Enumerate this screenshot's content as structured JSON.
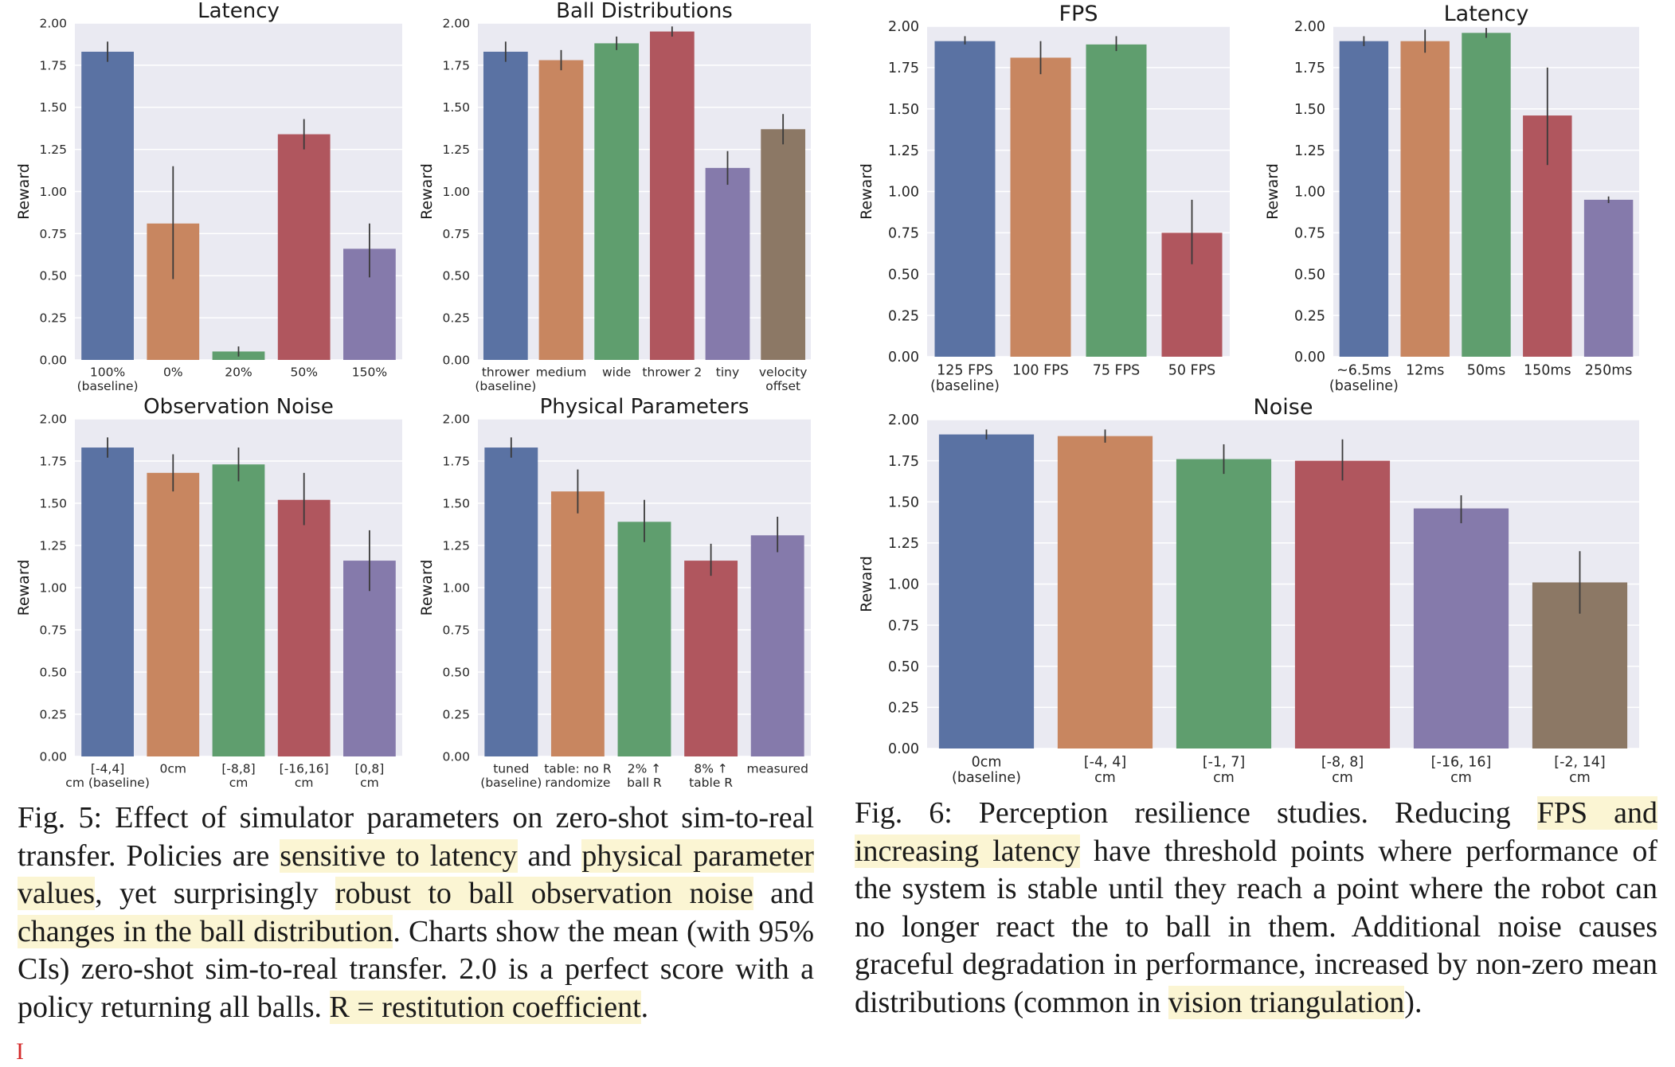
{
  "chart_data": [
    {
      "type": "bar",
      "title": "Latency",
      "ylabel": "Reward",
      "ylim": [
        0,
        2
      ],
      "yticks": [
        "0.00",
        "0.25",
        "0.50",
        "0.75",
        "1.00",
        "1.25",
        "1.50",
        "1.75",
        "2.00"
      ],
      "categories": [
        [
          "100%",
          "(baseline)"
        ],
        [
          "0%"
        ],
        [
          "20%"
        ],
        [
          "50%"
        ],
        [
          "150%"
        ]
      ],
      "values": [
        1.83,
        0.81,
        0.05,
        1.34,
        0.66
      ],
      "errors": [
        [
          1.77,
          1.89
        ],
        [
          0.48,
          1.15
        ],
        [
          0.02,
          0.08
        ],
        [
          1.25,
          1.43
        ],
        [
          0.49,
          0.81
        ]
      ],
      "colors": [
        "#5a72a3",
        "#c88660",
        "#5f9e6e",
        "#b0565e",
        "#857aab"
      ],
      "grid": true
    },
    {
      "type": "bar",
      "title": "Ball Distributions",
      "ylabel": "Reward",
      "ylim": [
        0,
        2
      ],
      "yticks": [
        "0.00",
        "0.25",
        "0.50",
        "0.75",
        "1.00",
        "1.25",
        "1.50",
        "1.75",
        "2.00"
      ],
      "categories": [
        [
          "thrower",
          "(baseline)"
        ],
        [
          "medium"
        ],
        [
          "wide"
        ],
        [
          "thrower 2"
        ],
        [
          "tiny"
        ],
        [
          "velocity",
          "offset"
        ]
      ],
      "values": [
        1.83,
        1.78,
        1.88,
        1.95,
        1.14,
        1.37
      ],
      "errors": [
        [
          1.77,
          1.89
        ],
        [
          1.72,
          1.84
        ],
        [
          1.84,
          1.92
        ],
        [
          1.92,
          1.98
        ],
        [
          1.04,
          1.24
        ],
        [
          1.28,
          1.46
        ]
      ],
      "colors": [
        "#5a72a3",
        "#c88660",
        "#5f9e6e",
        "#b0565e",
        "#857aab",
        "#8c7865"
      ],
      "grid": true
    },
    {
      "type": "bar",
      "title": "FPS",
      "ylabel": "Reward",
      "ylim": [
        0,
        2
      ],
      "yticks": [
        "0.00",
        "0.25",
        "0.50",
        "0.75",
        "1.00",
        "1.25",
        "1.50",
        "1.75",
        "2.00"
      ],
      "categories": [
        [
          "125 FPS",
          "(baseline)"
        ],
        [
          "100 FPS"
        ],
        [
          "75 FPS"
        ],
        [
          "50 FPS"
        ]
      ],
      "values": [
        1.91,
        1.81,
        1.89,
        0.75
      ],
      "errors": [
        [
          1.89,
          1.94
        ],
        [
          1.71,
          1.91
        ],
        [
          1.85,
          1.94
        ],
        [
          0.56,
          0.95
        ]
      ],
      "colors": [
        "#5a72a3",
        "#c88660",
        "#5f9e6e",
        "#b0565e"
      ],
      "grid": true
    },
    {
      "type": "bar",
      "title": "Latency",
      "ylabel": "Reward",
      "ylim": [
        0,
        2
      ],
      "yticks": [
        "0.00",
        "0.25",
        "0.50",
        "0.75",
        "1.00",
        "1.25",
        "1.50",
        "1.75",
        "2.00"
      ],
      "categories": [
        [
          "~6.5ms",
          "(baseline)"
        ],
        [
          "12ms"
        ],
        [
          "50ms"
        ],
        [
          "150ms"
        ],
        [
          "250ms"
        ]
      ],
      "values": [
        1.91,
        1.91,
        1.96,
        1.46,
        0.95
      ],
      "errors": [
        [
          1.88,
          1.94
        ],
        [
          1.84,
          1.98
        ],
        [
          1.93,
          1.99
        ],
        [
          1.16,
          1.75
        ],
        [
          0.93,
          0.97
        ]
      ],
      "colors": [
        "#5a72a3",
        "#c88660",
        "#5f9e6e",
        "#b0565e",
        "#857aab"
      ],
      "grid": true
    },
    {
      "type": "bar",
      "title": "Observation Noise",
      "ylabel": "Reward",
      "ylim": [
        0,
        2
      ],
      "yticks": [
        "0.00",
        "0.25",
        "0.50",
        "0.75",
        "1.00",
        "1.25",
        "1.50",
        "1.75",
        "2.00"
      ],
      "categories": [
        [
          "[-4,4]",
          "cm (baseline)"
        ],
        [
          "0cm"
        ],
        [
          "[-8,8]",
          "cm"
        ],
        [
          "[-16,16]",
          "cm"
        ],
        [
          "[0,8]",
          "cm"
        ]
      ],
      "values": [
        1.83,
        1.68,
        1.73,
        1.52,
        1.16
      ],
      "errors": [
        [
          1.77,
          1.89
        ],
        [
          1.57,
          1.79
        ],
        [
          1.63,
          1.83
        ],
        [
          1.37,
          1.68
        ],
        [
          0.98,
          1.34
        ]
      ],
      "colors": [
        "#5a72a3",
        "#c88660",
        "#5f9e6e",
        "#b0565e",
        "#857aab"
      ],
      "grid": true
    },
    {
      "type": "bar",
      "title": "Physical Parameters",
      "ylabel": "Reward",
      "ylim": [
        0,
        2
      ],
      "yticks": [
        "0.00",
        "0.25",
        "0.50",
        "0.75",
        "1.00",
        "1.25",
        "1.50",
        "1.75",
        "2.00"
      ],
      "categories": [
        [
          "tuned",
          "(baseline)"
        ],
        [
          "table: no R",
          "randomize"
        ],
        [
          "2% ↑",
          "ball R"
        ],
        [
          "8% ↑",
          "table R"
        ],
        [
          "measured"
        ]
      ],
      "values": [
        1.83,
        1.57,
        1.39,
        1.16,
        1.31
      ],
      "errors": [
        [
          1.77,
          1.89
        ],
        [
          1.44,
          1.7
        ],
        [
          1.27,
          1.52
        ],
        [
          1.07,
          1.26
        ],
        [
          1.21,
          1.42
        ]
      ],
      "colors": [
        "#5a72a3",
        "#c88660",
        "#5f9e6e",
        "#b0565e",
        "#857aab"
      ],
      "grid": true
    },
    {
      "type": "bar",
      "title": "Noise",
      "ylabel": "Reward",
      "ylim": [
        0,
        2
      ],
      "yticks": [
        "0.00",
        "0.25",
        "0.50",
        "0.75",
        "1.00",
        "1.25",
        "1.50",
        "1.75",
        "2.00"
      ],
      "categories": [
        [
          "0cm",
          "(baseline)"
        ],
        [
          "[-4, 4]",
          "cm"
        ],
        [
          "[-1, 7]",
          "cm"
        ],
        [
          "[-8, 8]",
          "cm"
        ],
        [
          "[-16, 16]",
          "cm"
        ],
        [
          "[-2, 14]",
          "cm"
        ]
      ],
      "values": [
        1.91,
        1.9,
        1.76,
        1.75,
        1.46,
        1.01
      ],
      "errors": [
        [
          1.88,
          1.94
        ],
        [
          1.86,
          1.94
        ],
        [
          1.67,
          1.85
        ],
        [
          1.63,
          1.88
        ],
        [
          1.37,
          1.54
        ],
        [
          0.82,
          1.2
        ]
      ],
      "colors": [
        "#5a72a3",
        "#c88660",
        "#5f9e6e",
        "#b0565e",
        "#857aab",
        "#8c7865"
      ],
      "grid": true
    }
  ],
  "captions": {
    "fig5": [
      {
        "text": "Fig. 5: Effect of simulator parameters on zero-shot sim-to-real transfer. Policies are ",
        "hl": false
      },
      {
        "text": "sensitive to latency",
        "hl": true
      },
      {
        "text": " and ",
        "hl": false
      },
      {
        "text": "physical parameter values",
        "hl": true
      },
      {
        "text": ", yet surprisingly ",
        "hl": false
      },
      {
        "text": "robust to ball observation noise",
        "hl": true
      },
      {
        "text": " and ",
        "hl": false
      },
      {
        "text": "changes in the ball distribution",
        "hl": true
      },
      {
        "text": ". Charts show the mean (with 95% CIs) zero-shot sim-to-real transfer. 2.0 is a perfect score with a policy returning all balls. ",
        "hl": false
      },
      {
        "text": "R = restitution coefficient",
        "hl": true
      },
      {
        "text": ".",
        "hl": false
      }
    ],
    "fig6": [
      {
        "text": "Fig. 6: Perception resilience studies. Reducing ",
        "hl": false
      },
      {
        "text": "FPS and increasing latency",
        "hl": true
      },
      {
        "text": " have threshold points where performance of the system is stable until they reach a point where the robot can no longer react the to ball in them. Additional noise causes graceful degradation in performance, increased by non-zero mean distributions (common in ",
        "hl": false
      },
      {
        "text": "vision triangulation",
        "hl": true
      },
      {
        "text": ").",
        "hl": false
      }
    ]
  }
}
